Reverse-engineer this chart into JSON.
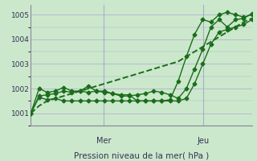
{
  "bg_color": "#cce8cc",
  "grid_color": "#aaaacc",
  "line_color": "#1a6e1a",
  "ylim": [
    1000.5,
    1005.4
  ],
  "yticks": [
    1001,
    1002,
    1003,
    1004,
    1005
  ],
  "xlabel": "Pression niveau de la mer( hPa )",
  "vline_positions": [
    0.33,
    0.78
  ],
  "vline_labels": [
    "Mer",
    "Jeu"
  ],
  "series": [
    [
      1001.0,
      1001.7,
      1001.75,
      1001.8,
      1001.9,
      1001.85,
      1001.9,
      1001.85,
      1001.9,
      1001.85,
      1001.8,
      1001.75,
      1001.75,
      1001.5,
      1001.5,
      1001.5,
      1001.5,
      1001.55,
      1002.3,
      1003.3,
      1004.2,
      1004.8,
      1004.7,
      1005.0,
      1005.1,
      1005.0,
      1004.9,
      1005.0
    ],
    [
      1001.0,
      1002.0,
      1001.85,
      1001.9,
      1002.05,
      1001.9,
      1001.9,
      1002.1,
      1001.9,
      1001.9,
      1001.8,
      1001.7,
      1001.7,
      1001.75,
      1001.8,
      1001.9,
      1001.85,
      1001.75,
      1001.6,
      1002.0,
      1002.8,
      1003.6,
      1004.5,
      1004.8,
      1004.5,
      1004.8,
      1004.85,
      1005.05
    ],
    [
      1001.0,
      1001.65,
      1001.55,
      1001.6,
      1001.5,
      1001.5,
      1001.5,
      1001.5,
      1001.5,
      1001.5,
      1001.5,
      1001.5,
      1001.5,
      1001.5,
      1001.5,
      1001.5,
      1001.5,
      1001.5,
      1001.5,
      1001.6,
      1002.2,
      1003.0,
      1003.8,
      1004.3,
      1004.4,
      1004.5,
      1004.6,
      1004.8
    ],
    [
      1001.0,
      1001.3,
      1001.5,
      1001.6,
      1001.7,
      1001.8,
      1001.9,
      1002.0,
      1002.1,
      1002.2,
      1002.3,
      1002.4,
      1002.5,
      1002.6,
      1002.7,
      1002.8,
      1002.9,
      1003.0,
      1003.1,
      1003.3,
      1003.5,
      1003.7,
      1003.9,
      1004.1,
      1004.3,
      1004.5,
      1004.7,
      1004.85
    ]
  ],
  "marker": "D",
  "markersize": 2.5,
  "linewidth": 1.0
}
